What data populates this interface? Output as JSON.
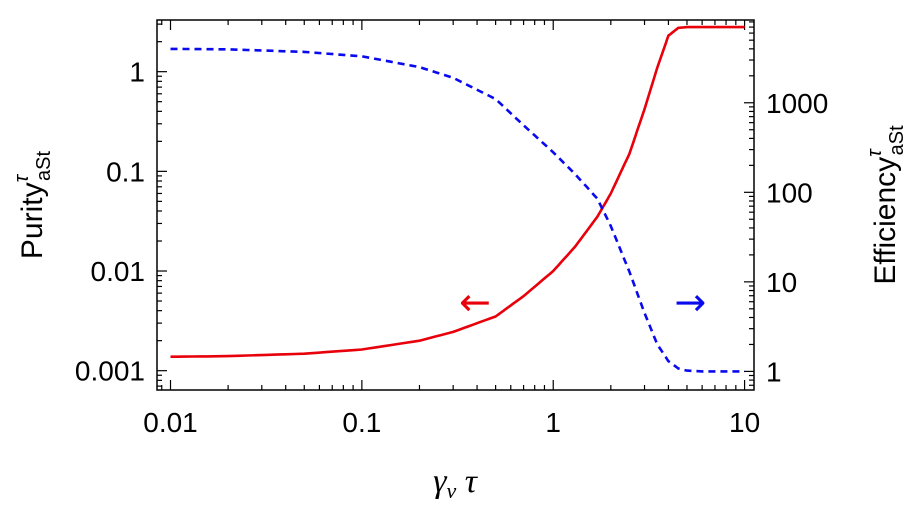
{
  "chart_data": {
    "type": "line",
    "x_axis": {
      "label_main": "γ",
      "label_sub": "v",
      "label_tail": " τ",
      "scale": "log",
      "range": [
        0.0085,
        11.2
      ],
      "ticks": [
        0.01,
        0.1,
        1,
        10
      ],
      "tick_labels": [
        "0.01",
        "0.1",
        "1",
        "10"
      ]
    },
    "y_left": {
      "label_main": "Purity",
      "label_sup": "τ",
      "label_sub": "aSt",
      "scale": "log",
      "range": [
        0.00064,
        3.3
      ],
      "ticks": [
        0.001,
        0.01,
        0.1,
        1
      ],
      "tick_labels": [
        "0.001",
        "0.01",
        "0.1",
        "1"
      ]
    },
    "y_right": {
      "label_main": "Efficiency",
      "label_sup": "τ",
      "label_sub": "aSt",
      "scale": "log",
      "range": [
        0.62,
        8400
      ],
      "ticks": [
        1,
        10,
        100,
        1000
      ],
      "tick_labels": [
        "1",
        "10",
        "100",
        "1000"
      ]
    },
    "series": [
      {
        "axis": "left",
        "color": "#e8000b",
        "style": "solid",
        "x": [
          0.01,
          0.02,
          0.05,
          0.1,
          0.2,
          0.3,
          0.5,
          0.7,
          1.0,
          1.3,
          1.7,
          2.0,
          2.5,
          3.0,
          3.5,
          4.0,
          4.5,
          5.0,
          6.0,
          8.0,
          10.0
        ],
        "values": [
          0.00138,
          0.0014,
          0.00148,
          0.00163,
          0.002,
          0.00245,
          0.0035,
          0.0056,
          0.01,
          0.0175,
          0.035,
          0.06,
          0.15,
          0.42,
          1.1,
          2.3,
          2.75,
          2.8,
          2.8,
          2.8,
          2.8
        ]
      },
      {
        "axis": "right",
        "color": "#0a0aef",
        "style": "dashed",
        "x": [
          0.01,
          0.02,
          0.05,
          0.1,
          0.2,
          0.3,
          0.5,
          0.7,
          1.0,
          1.3,
          1.7,
          2.0,
          2.5,
          3.0,
          3.5,
          4.0,
          4.5,
          5.0,
          6.0,
          8.0,
          10.0
        ],
        "values": [
          4000,
          3950,
          3700,
          3300,
          2500,
          1900,
          1100,
          560,
          280,
          160,
          85,
          42,
          13,
          4.5,
          2.0,
          1.3,
          1.08,
          1.02,
          1.0,
          1.0,
          1.0
        ]
      }
    ],
    "annotations": [
      {
        "symbol": "←",
        "color": "#e8000b",
        "x": 0.39,
        "y_left": 0.0048
      },
      {
        "symbol": "→",
        "color": "#0a0aef",
        "x": 5.2,
        "y_left": 0.0048
      }
    ]
  }
}
